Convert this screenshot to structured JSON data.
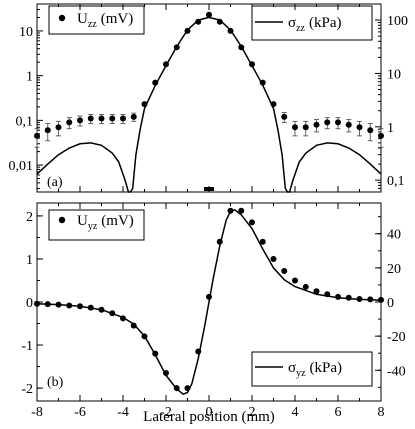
{
  "chart_data": [
    {
      "panel_label": "(a)",
      "type": "scatter",
      "x_axis": {
        "range": [
          -8,
          8
        ],
        "grid": false
      },
      "y_left": {
        "scale": "log",
        "range": [
          0.0025,
          40
        ],
        "ticks": [
          0.01,
          0.1,
          1,
          10
        ],
        "tick_labels": [
          "0,01",
          "0,1",
          "1",
          "10"
        ]
      },
      "y_right": {
        "scale": "log",
        "range": [
          0.06,
          200
        ],
        "ticks": [
          0.1,
          1,
          10,
          100
        ],
        "tick_labels": [
          "0,1",
          "1",
          "10",
          "100"
        ]
      },
      "legend_left": {
        "main": "U",
        "sub": "zz",
        "unit": "(mV)"
      },
      "legend_right": {
        "main": "σ",
        "sub": "zz",
        "unit": "(kPa)"
      },
      "series": [
        {
          "axis": "left",
          "type": "scatter",
          "x": [
            -8,
            -7.5,
            -7,
            -6.5,
            -6,
            -5.5,
            -5,
            -4.5,
            -4,
            -3.5,
            -3,
            -2.5,
            -2,
            -1.5,
            -1,
            -0.5,
            0,
            0.5,
            1,
            1.5,
            2,
            2.5,
            3,
            3.5,
            4,
            4.5,
            5,
            5.5,
            6,
            6.5,
            7,
            7.5,
            8
          ],
          "y": [
            0.045,
            0.06,
            0.07,
            0.09,
            0.1,
            0.11,
            0.11,
            0.11,
            0.11,
            0.12,
            0.23,
            0.7,
            1.8,
            4.3,
            10,
            16,
            23,
            16,
            10,
            4.3,
            1.8,
            0.7,
            0.23,
            0.12,
            0.07,
            0.07,
            0.08,
            0.09,
            0.09,
            0.08,
            0.07,
            0.06,
            0.045
          ],
          "err": [
            0.02,
            0.025,
            0.025,
            0.025,
            0.025,
            0.025,
            0.025,
            0.025,
            0.025,
            0.025,
            0,
            0,
            0,
            0,
            0,
            0,
            0,
            0,
            0,
            0,
            0,
            0,
            0,
            0.03,
            0.025,
            0.025,
            0.025,
            0.025,
            0.025,
            0.025,
            0.025,
            0.025,
            0.02
          ]
        },
        {
          "axis": "right",
          "type": "line",
          "x": [
            -8,
            -7.5,
            -7,
            -6.5,
            -6,
            -5.5,
            -5,
            -4.5,
            -4.2,
            -3.9,
            -3.75,
            -3.65,
            -3.55,
            -3.4,
            -3.2,
            -3,
            -2.5,
            -2,
            -1.5,
            -1,
            -0.5,
            0,
            0.5,
            1,
            1.5,
            2,
            2.5,
            3,
            3.2,
            3.4,
            3.55,
            3.65,
            3.75,
            3.9,
            4.2,
            4.5,
            5,
            5.5,
            6,
            6.5,
            7,
            7.5,
            8
          ],
          "y": [
            0.13,
            0.2,
            0.3,
            0.4,
            0.48,
            0.5,
            0.45,
            0.32,
            0.22,
            0.1,
            0.06,
            0.06,
            0.07,
            0.3,
            0.9,
            2.2,
            6,
            14,
            32,
            65,
            100,
            112,
            100,
            65,
            32,
            14,
            6,
            2.2,
            0.9,
            0.3,
            0.07,
            0.06,
            0.06,
            0.1,
            0.22,
            0.32,
            0.45,
            0.5,
            0.48,
            0.4,
            0.3,
            0.2,
            0.13
          ]
        }
      ]
    },
    {
      "panel_label": "(b)",
      "type": "scatter",
      "x_axis": {
        "range": [
          -8,
          8
        ],
        "ticks": [
          -8,
          -6,
          -4,
          -2,
          0,
          2,
          4,
          6,
          8
        ],
        "tick_labels": [
          "-8",
          "-6",
          "-4",
          "-2",
          "0",
          "2",
          "4",
          "6",
          "8"
        ],
        "label": "Lateral position (mm)"
      },
      "y_left": {
        "scale": "linear",
        "range": [
          -2.3,
          2.3
        ],
        "ticks": [
          -2,
          -1,
          0,
          1,
          2
        ],
        "tick_labels": [
          "-2",
          "-1",
          "0",
          "1",
          "2"
        ]
      },
      "y_right": {
        "scale": "linear",
        "range": [
          -58,
          58
        ],
        "ticks": [
          -40,
          -20,
          0,
          20,
          40
        ],
        "tick_labels": [
          "-40",
          "-20",
          "0",
          "20",
          "40"
        ]
      },
      "legend_left": {
        "main": "U",
        "sub": "yz",
        "unit": "(mV)"
      },
      "legend_right": {
        "main": "σ",
        "sub": "yz",
        "unit": "(kPa)"
      },
      "series": [
        {
          "axis": "left",
          "type": "scatter",
          "x": [
            -8,
            -7.5,
            -7,
            -6.5,
            -6,
            -5.5,
            -5,
            -4.5,
            -4,
            -3.5,
            -3,
            -2.5,
            -2,
            -1.5,
            -1,
            -0.5,
            0,
            0.5,
            1,
            1.5,
            2,
            2.5,
            3,
            3.5,
            4,
            4.5,
            5,
            5.5,
            6,
            6.5,
            7,
            7.5,
            8
          ],
          "y": [
            -0.04,
            -0.05,
            -0.06,
            -0.08,
            -0.1,
            -0.13,
            -0.18,
            -0.26,
            -0.38,
            -0.55,
            -0.8,
            -1.2,
            -1.65,
            -2.0,
            -2.0,
            -1.15,
            0.12,
            1.4,
            2.12,
            2.12,
            1.85,
            1.4,
            1.0,
            0.72,
            0.5,
            0.35,
            0.25,
            0.18,
            0.12,
            0.1,
            0.07,
            0.06,
            0.05
          ]
        },
        {
          "axis": "right",
          "type": "line",
          "x": [
            -8,
            -7,
            -6,
            -5,
            -4,
            -3.5,
            -3,
            -2.5,
            -2,
            -1.5,
            -1.2,
            -1,
            -0.8,
            -0.5,
            -0.2,
            0,
            0.2,
            0.5,
            0.8,
            1,
            1.2,
            1.5,
            2,
            2.5,
            3,
            3.5,
            4,
            5,
            6,
            7,
            8
          ],
          "y": [
            -1,
            -1.5,
            -2.5,
            -4.5,
            -9,
            -13,
            -20,
            -31,
            -43,
            -51,
            -54,
            -53,
            -48,
            -33,
            -14,
            0,
            14,
            33,
            48,
            53,
            54,
            51,
            43,
            31,
            20,
            13,
            9,
            4.5,
            2.5,
            1.5,
            1
          ]
        }
      ]
    }
  ]
}
